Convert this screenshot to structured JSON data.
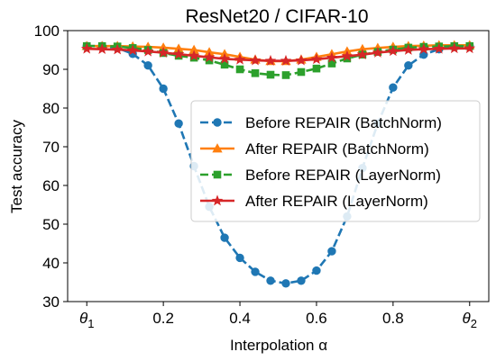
{
  "chart_data": {
    "type": "line",
    "title": "ResNet20 / CIFAR-10",
    "xlabel": "Interpolation α",
    "ylabel": "Test accuracy",
    "xlim": [
      -0.05,
      1.05
    ],
    "ylim": [
      30,
      100
    ],
    "xticks": [
      {
        "value": 0,
        "label": "θ",
        "sub": "1"
      },
      {
        "value": 0.2,
        "label": "0.2"
      },
      {
        "value": 0.4,
        "label": "0.4"
      },
      {
        "value": 0.6,
        "label": "0.6"
      },
      {
        "value": 0.8,
        "label": "0.8"
      },
      {
        "value": 1,
        "label": "θ",
        "sub": "2"
      }
    ],
    "yticks": [
      30,
      40,
      50,
      60,
      70,
      80,
      90,
      100
    ],
    "grid": false,
    "legend_position": "center-right",
    "x": [
      0,
      0.04,
      0.08,
      0.12,
      0.16,
      0.2,
      0.24,
      0.28,
      0.32,
      0.36,
      0.4,
      0.44,
      0.48,
      0.52,
      0.56,
      0.6,
      0.64,
      0.68,
      0.72,
      0.76,
      0.8,
      0.84,
      0.88,
      0.92,
      0.96,
      1.0
    ],
    "series": [
      {
        "name": "Before REPAIR (BatchNorm)",
        "color": "#1f77b4",
        "linestyle": "dashed",
        "marker": "circle",
        "values": [
          96,
          96,
          95.5,
          94,
          91,
          85,
          76,
          65,
          54.5,
          46.5,
          41.3,
          37.7,
          35.4,
          34.7,
          35.4,
          38,
          43,
          52,
          64.5,
          76,
          85.3,
          91,
          93.8,
          95.2,
          95.8,
          96
        ]
      },
      {
        "name": "After REPAIR (BatchNorm)",
        "color": "#ff7f0e",
        "linestyle": "solid",
        "marker": "triangle",
        "values": [
          96,
          96,
          96,
          95.9,
          95.8,
          95.6,
          95.3,
          95,
          94.4,
          93.9,
          93.2,
          92.5,
          92.1,
          92.1,
          92.5,
          93.2,
          93.9,
          94.6,
          95.2,
          95.5,
          95.8,
          96,
          96.1,
          96.2,
          96.2,
          96.2
        ]
      },
      {
        "name": "Before REPAIR (LayerNorm)",
        "color": "#2ca02c",
        "linestyle": "dashed",
        "marker": "square",
        "values": [
          96,
          96,
          95.9,
          95.5,
          95,
          94.2,
          93.5,
          93,
          92.3,
          91.2,
          90,
          89,
          88.6,
          88.5,
          89.3,
          90.2,
          91.5,
          92.8,
          93.8,
          94.5,
          95.1,
          95.6,
          95.8,
          95.9,
          96,
          96
        ]
      },
      {
        "name": "After REPAIR (LayerNorm)",
        "color": "#d62728",
        "linestyle": "solid",
        "marker": "star",
        "values": [
          95.3,
          95.2,
          95.1,
          94.9,
          94.6,
          94.3,
          93.9,
          93.5,
          93.1,
          92.7,
          92.5,
          92.3,
          92.2,
          92.2,
          92.3,
          92.6,
          93,
          93.4,
          93.8,
          94.3,
          94.7,
          95,
          95.2,
          95.3,
          95.4,
          95.4
        ]
      }
    ]
  }
}
